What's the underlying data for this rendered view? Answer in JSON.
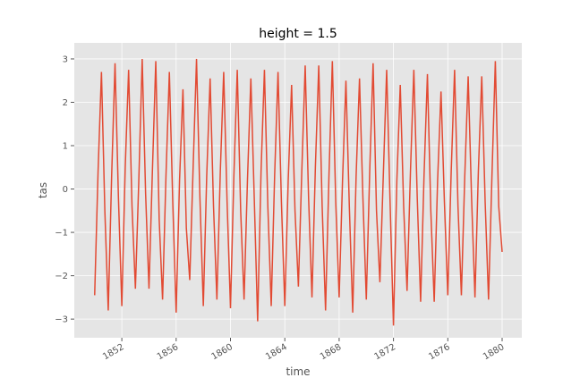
{
  "chart_data": {
    "type": "line",
    "title": "height = 1.5",
    "xlabel": "time",
    "ylabel": "tas",
    "x": [
      1850,
      1850.25,
      1850.5,
      1850.75,
      1851,
      1851.25,
      1851.5,
      1851.75,
      1852,
      1852.25,
      1852.5,
      1852.75,
      1853,
      1853.25,
      1853.5,
      1853.75,
      1854,
      1854.25,
      1854.5,
      1854.75,
      1855,
      1855.25,
      1855.5,
      1855.75,
      1856,
      1856.25,
      1856.5,
      1856.75,
      1857,
      1857.25,
      1857.5,
      1857.75,
      1858,
      1858.25,
      1858.5,
      1858.75,
      1859,
      1859.25,
      1859.5,
      1859.75,
      1860,
      1860.25,
      1860.5,
      1860.75,
      1861,
      1861.25,
      1861.5,
      1861.75,
      1862,
      1862.25,
      1862.5,
      1862.75,
      1863,
      1863.25,
      1863.5,
      1863.75,
      1864,
      1864.25,
      1864.5,
      1864.75,
      1865,
      1865.25,
      1865.5,
      1865.75,
      1866,
      1866.25,
      1866.5,
      1866.75,
      1867,
      1867.25,
      1867.5,
      1867.75,
      1868,
      1868.25,
      1868.5,
      1868.75,
      1869,
      1869.25,
      1869.5,
      1869.75,
      1870,
      1870.25,
      1870.5,
      1870.75,
      1871,
      1871.25,
      1871.5,
      1871.75,
      1872,
      1872.25,
      1872.5,
      1872.75,
      1873,
      1873.25,
      1873.5,
      1873.75,
      1874,
      1874.25,
      1874.5,
      1874.75,
      1875,
      1875.25,
      1875.5,
      1875.75,
      1876,
      1876.25,
      1876.5,
      1876.75,
      1877,
      1877.25,
      1877.5,
      1877.75,
      1878,
      1878.25,
      1878.5,
      1878.75,
      1879,
      1879.25,
      1879.5,
      1879.75,
      1880
    ],
    "series": [
      {
        "name": "tas",
        "color": "#E24A33",
        "values": [
          -2.45,
          0.4,
          2.7,
          -0.5,
          -2.8,
          0.3,
          2.9,
          -0.2,
          -2.7,
          0.5,
          2.75,
          -0.4,
          -2.3,
          0.2,
          3.0,
          -0.1,
          -2.3,
          0.4,
          2.95,
          -0.7,
          -2.55,
          0.3,
          2.7,
          -0.3,
          -2.85,
          0.2,
          2.3,
          -0.9,
          -2.1,
          0.5,
          3.0,
          -0.2,
          -2.7,
          0.3,
          2.55,
          -0.4,
          -2.55,
          0.4,
          2.7,
          -0.3,
          -2.75,
          0.3,
          2.75,
          -0.5,
          -2.55,
          0.2,
          2.55,
          -0.2,
          -3.05,
          0.4,
          2.75,
          -0.4,
          -2.7,
          0.3,
          2.7,
          -0.3,
          -2.7,
          0.2,
          2.4,
          -0.5,
          -2.25,
          0.4,
          2.85,
          -0.2,
          -2.5,
          0.5,
          2.85,
          -0.4,
          -2.8,
          0.3,
          2.95,
          -0.3,
          -2.5,
          0.2,
          2.5,
          -0.4,
          -2.85,
          0.3,
          2.55,
          -0.2,
          -2.55,
          0.4,
          2.9,
          -0.5,
          -2.15,
          0.3,
          2.75,
          -0.3,
          -3.15,
          0.2,
          2.4,
          -0.4,
          -2.35,
          0.4,
          2.75,
          -0.2,
          -2.6,
          0.3,
          2.65,
          -0.5,
          -2.6,
          0.2,
          2.25,
          -0.3,
          -2.45,
          0.4,
          2.75,
          -0.4,
          -2.45,
          0.3,
          2.6,
          -0.2,
          -2.5,
          0.4,
          2.6,
          -0.3,
          -2.55,
          0.3,
          2.95,
          -0.4,
          -1.45
        ]
      }
    ],
    "xlim": [
      1848.5,
      1881.45
    ],
    "ylim": [
      -3.43,
      3.37
    ],
    "xticks": [
      1852,
      1856,
      1860,
      1864,
      1868,
      1872,
      1876,
      1880
    ],
    "yticks": [
      {
        "value": -3,
        "label": "−3"
      },
      {
        "value": -2,
        "label": "−2"
      },
      {
        "value": -1,
        "label": "−1"
      },
      0,
      1,
      2,
      3
    ],
    "grid": true
  }
}
